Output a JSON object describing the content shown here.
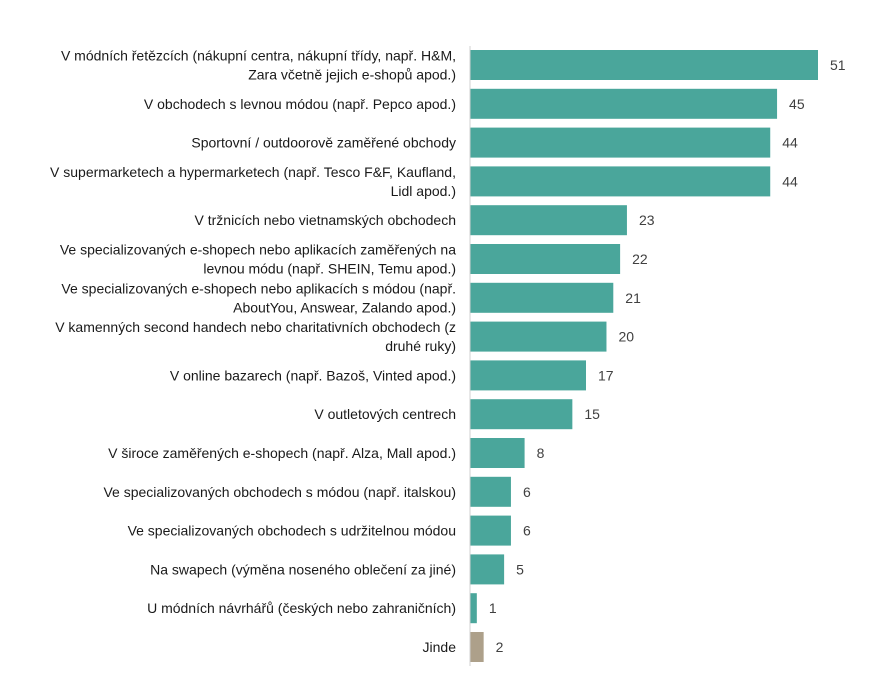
{
  "chart_data": {
    "type": "bar",
    "orientation": "horizontal",
    "categories": [
      "V módních řetězcích (nákupní centra, nákupní třídy, např. H&M, Zara včetně jejich e-shopů apod.)",
      "V obchodech s levnou módou (např. Pepco apod.)",
      "Sportovní / outdoorově zaměřené obchody",
      "V supermarketech a hypermarketech (např. Tesco F&F, Kaufland, Lidl apod.)",
      "V tržnicích nebo vietnamských obchodech",
      "Ve specializovaných e-shopech nebo aplikacích zaměřených na levnou módu (např. SHEIN, Temu apod.)",
      "Ve specializovaných e-shopech nebo aplikacích s módou (např. AboutYou, Answear, Zalando apod.)",
      "V kamenných second handech nebo charitativních obchodech (z druhé ruky)",
      "V online bazarech (např. Bazoš, Vinted apod.)",
      "V outletových centrech",
      "V široce zaměřených e-shopech (např. Alza, Mall apod.)",
      "Ve specializovaných obchodech s módou (např. italskou)",
      "Ve specializovaných obchodech s udržitelnou módou",
      "Na swapech (výměna noseného oblečení za jiné)",
      "U módních návrhářů (českých nebo zahraničních)",
      "Jinde"
    ],
    "label_lines": [
      [
        "V módních řetězcích (nákupní centra, nákupní třídy, např. H&M,",
        "Zara včetně jejich e-shopů apod.)"
      ],
      [
        "V obchodech s levnou módou (např. Pepco apod.)"
      ],
      [
        "Sportovní / outdoorově zaměřené obchody"
      ],
      [
        "V supermarketech a hypermarketech (např. Tesco F&F, Kaufland,",
        "Lidl apod.)"
      ],
      [
        "V tržnicích nebo vietnamských obchodech"
      ],
      [
        "Ve specializovaných e-shopech nebo aplikacích zaměřených na",
        "levnou módu (např. SHEIN, Temu apod.)"
      ],
      [
        "Ve specializovaných e-shopech nebo aplikacích s módou (např.",
        "AboutYou, Answear, Zalando apod.)"
      ],
      [
        "V kamenných second handech nebo charitativních obchodech (z",
        "druhé ruky)"
      ],
      [
        "V online bazarech (např. Bazoš, Vinted apod.)"
      ],
      [
        "V outletových centrech"
      ],
      [
        "V široce zaměřených e-shopech (např. Alza, Mall apod.)"
      ],
      [
        "Ve specializovaných obchodech s módou (např. italskou)"
      ],
      [
        "Ve specializovaných obchodech s udržitelnou módou"
      ],
      [
        "Na swapech (výměna noseného oblečení za jiné)"
      ],
      [
        "U módních návrhářů (českých nebo zahraničních)"
      ],
      [
        "Jinde"
      ]
    ],
    "values": [
      51,
      45,
      44,
      44,
      23,
      22,
      21,
      20,
      17,
      15,
      8,
      6,
      6,
      5,
      1,
      2
    ],
    "bar_colors": [
      "#4aa69b",
      "#4aa69b",
      "#4aa69b",
      "#4aa69b",
      "#4aa69b",
      "#4aa69b",
      "#4aa69b",
      "#4aa69b",
      "#4aa69b",
      "#4aa69b",
      "#4aa69b",
      "#4aa69b",
      "#4aa69b",
      "#4aa69b",
      "#4aa69b",
      "#ada08a"
    ],
    "xlim": [
      0,
      51
    ],
    "grid": false,
    "legend": "none",
    "data_labels": true
  }
}
